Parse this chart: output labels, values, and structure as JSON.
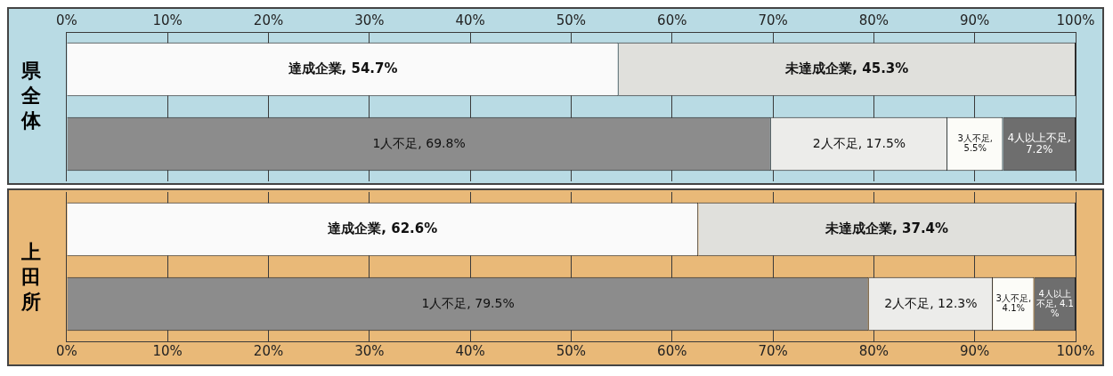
{
  "chart_data": [
    {
      "type": "bar",
      "title": "県全体",
      "orientation": "horizontal",
      "stacked": true,
      "categories": [
        null,
        null
      ],
      "x2lim": [
        0,
        100
      ],
      "x2ticks": [
        {
          "value": 0,
          "label": "0%"
        },
        {
          "value": 10,
          "label": "10%"
        },
        {
          "value": 20,
          "label": "20%"
        },
        {
          "value": 30,
          "label": "30%"
        },
        {
          "value": 40,
          "label": "40%"
        },
        {
          "value": 50,
          "label": "50%"
        },
        {
          "value": 60,
          "label": "60%"
        },
        {
          "value": 70,
          "label": "70%"
        },
        {
          "value": 80,
          "label": "80%"
        },
        {
          "value": 90,
          "label": "90%"
        },
        {
          "value": 100,
          "label": "100%"
        }
      ],
      "grid": "x",
      "legend": false,
      "series": [
        {
          "color": "#fafafa",
          "values": [
            54.7,
            null
          ],
          "value_labels": [
            "達成企業, 54.7%",
            null
          ]
        },
        {
          "color": "#e0e0dc",
          "values": [
            45.3,
            null
          ],
          "value_labels": [
            "未達成企業, 45.3%",
            null
          ]
        },
        {
          "color": "#8c8c8c",
          "values": [
            null,
            69.8
          ],
          "value_labels": [
            null,
            "1人不足, 69.8%"
          ]
        },
        {
          "color": "#ececea",
          "values": [
            null,
            17.5
          ],
          "value_labels": [
            null,
            "2人不足, 17.5%"
          ]
        },
        {
          "color": "#fcfcf8",
          "values": [
            null,
            5.5
          ],
          "value_labels": [
            null,
            "3人不足, 5.5%"
          ]
        },
        {
          "color": "#6e6e6e",
          "values": [
            null,
            7.2
          ],
          "value_labels": [
            null,
            "4人以上不足, 7.2%"
          ]
        }
      ]
    },
    {
      "type": "bar",
      "title": "上田所",
      "orientation": "horizontal",
      "stacked": true,
      "categories": [
        null,
        null
      ],
      "xlim": [
        0,
        100
      ],
      "xticks": [
        {
          "value": 0,
          "label": "0%"
        },
        {
          "value": 10,
          "label": "10%"
        },
        {
          "value": 20,
          "label": "20%"
        },
        {
          "value": 30,
          "label": "30%"
        },
        {
          "value": 40,
          "label": "40%"
        },
        {
          "value": 50,
          "label": "50%"
        },
        {
          "value": 60,
          "label": "60%"
        },
        {
          "value": 70,
          "label": "70%"
        },
        {
          "value": 80,
          "label": "80%"
        },
        {
          "value": 90,
          "label": "90%"
        },
        {
          "value": 100,
          "label": "100%"
        }
      ],
      "grid": "x",
      "legend": false,
      "series": [
        {
          "color": "#fafafa",
          "values": [
            62.6,
            null
          ],
          "value_labels": [
            "達成企業, 62.6%",
            null
          ]
        },
        {
          "color": "#e0e0dc",
          "values": [
            37.4,
            null
          ],
          "value_labels": [
            "未達成企業, 37.4%",
            null
          ]
        },
        {
          "color": "#8c8c8c",
          "values": [
            null,
            79.5
          ],
          "value_labels": [
            null,
            "1人不足, 79.5%"
          ]
        },
        {
          "color": "#ececea",
          "values": [
            null,
            12.3
          ],
          "value_labels": [
            null,
            "2人不足, 12.3%"
          ]
        },
        {
          "color": "#fcfcf8",
          "values": [
            null,
            4.1
          ],
          "value_labels": [
            null,
            "3人不足, 4.1%"
          ]
        },
        {
          "color": "#6e6e6e",
          "values": [
            null,
            4.1
          ],
          "value_labels": [
            null,
            "4人以上不足, 4.1%"
          ]
        }
      ]
    }
  ]
}
